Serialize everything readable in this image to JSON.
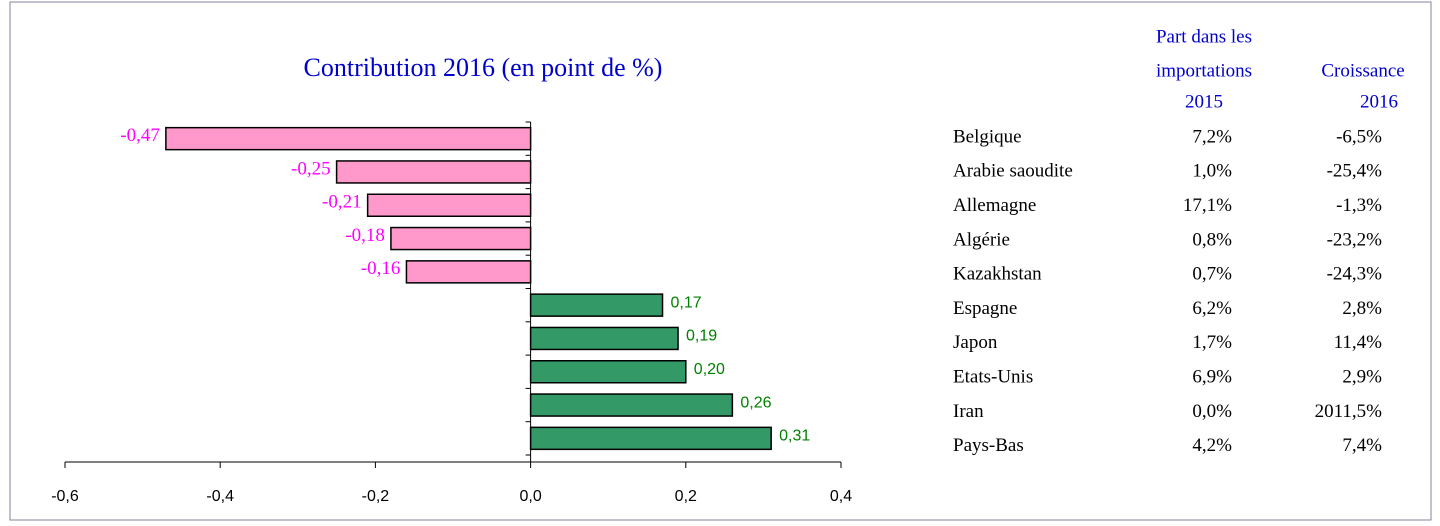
{
  "chart_data": {
    "type": "barh",
    "title": "Contribution 2016 (en point de %)",
    "values": [
      -0.47,
      -0.25,
      -0.21,
      -0.18,
      -0.16,
      0.17,
      0.19,
      0.2,
      0.26,
      0.31
    ],
    "value_labels": [
      "-0,47",
      "-0,25",
      "-0,21",
      "-0,18",
      "-0,16",
      "0,17",
      "0,19",
      "0,20",
      "0,26",
      "0,31"
    ],
    "colors": [
      "#ff99cc",
      "#ff99cc",
      "#ff99cc",
      "#ff99cc",
      "#ff99cc",
      "#339966",
      "#339966",
      "#339966",
      "#339966",
      "#339966"
    ],
    "label_colors": [
      "#ff00ff",
      "#ff00ff",
      "#ff00ff",
      "#ff00ff",
      "#ff00ff",
      "#008000",
      "#008000",
      "#008000",
      "#008000",
      "#008000"
    ],
    "xlim": [
      -0.6,
      0.4
    ],
    "xticks": [
      {
        "value": -0.6,
        "label": "-0,6"
      },
      {
        "value": -0.4,
        "label": "-0,4"
      },
      {
        "value": -0.2,
        "label": "-0,2"
      },
      {
        "value": 0,
        "label": "0,0"
      },
      {
        "value": 0.2,
        "label": "0,2"
      },
      {
        "value": 0.4,
        "label": "0,4"
      }
    ]
  },
  "table": {
    "headers": [
      [
        "Part dans les",
        "importations",
        "2015"
      ],
      [
        "Croissance",
        "2016"
      ]
    ],
    "rows": [
      [
        "Belgique",
        "7,2%",
        "-6,5%"
      ],
      [
        "Arabie saoudite",
        "1,0%",
        "-25,4%"
      ],
      [
        "Allemagne",
        "17,1%",
        "-1,3%"
      ],
      [
        "Algérie",
        "0,8%",
        "-23,2%"
      ],
      [
        "Kazakhstan",
        "0,7%",
        "-24,3%"
      ],
      [
        "Espagne",
        "6,2%",
        "2,8%"
      ],
      [
        "Japon",
        "1,7%",
        "11,4%"
      ],
      [
        "Etats-Unis",
        "6,9%",
        "2,9%"
      ],
      [
        "Iran",
        "0,0%",
        "2011,5%"
      ],
      [
        "Pays-Bas",
        "4,2%",
        "7,4%"
      ]
    ]
  }
}
